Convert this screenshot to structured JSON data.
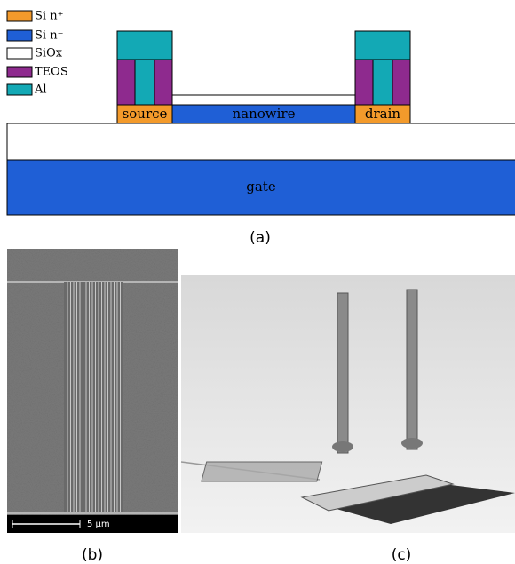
{
  "legend": {
    "items": [
      {
        "label": "Si n⁺",
        "color": "#f39a2b"
      },
      {
        "label": "Si n⁻",
        "color": "#1f5fd6"
      },
      {
        "label": "SiOx",
        "color": "#ffffff"
      },
      {
        "label": "TEOS",
        "color": "#8e2a8e"
      },
      {
        "label": "Al",
        "color": "#13a9b5"
      }
    ]
  },
  "diagram": {
    "labels": {
      "source": "source",
      "nanowire": "nanowire",
      "drain": "drain",
      "gate": "gate"
    }
  },
  "scale_bar": "5 μm",
  "captions": {
    "a": "(a)",
    "b": "(b)",
    "c": "(c)"
  }
}
